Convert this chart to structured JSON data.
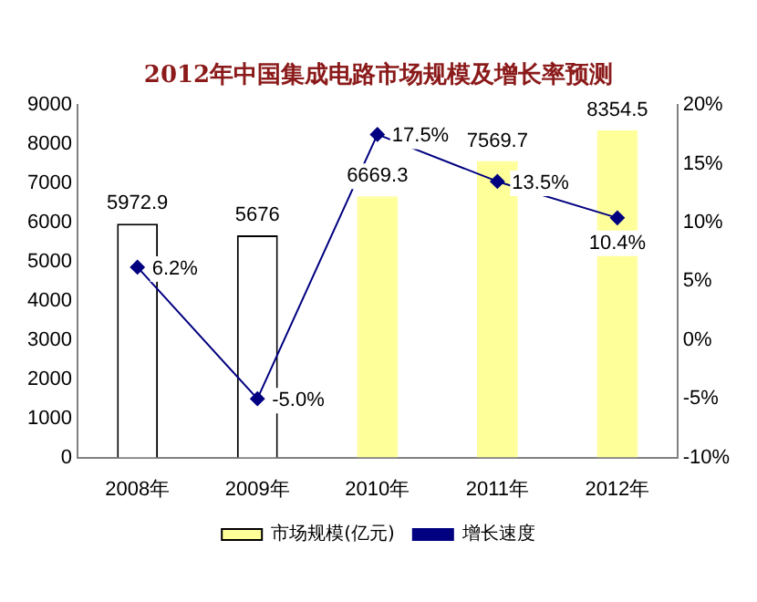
{
  "chart_data": {
    "type": "bar",
    "title": "2012年中国集成电路市场规模及增长率预测",
    "categories": [
      "2008年",
      "2009年",
      "2010年",
      "2011年",
      "2012年"
    ],
    "series": [
      {
        "name": "市场规模(亿元)",
        "colors": [
          "#ffffff",
          "#ffffff",
          "#ffff99",
          "#ffff99",
          "#ffff99"
        ],
        "values": [
          5972.9,
          5676,
          6669.3,
          7569.7,
          8354.5
        ],
        "value_labels": [
          "5972.9",
          "5676",
          "6669.3",
          "7569.7",
          "8354.5"
        ]
      },
      {
        "name": "增长速度",
        "type": "line",
        "axis": "y2",
        "color": "#000080",
        "marker": "diamond",
        "values": [
          6.2,
          -5.0,
          17.5,
          13.5,
          10.4
        ],
        "value_labels": [
          "6.2%",
          "-5.0%",
          "17.5%",
          "13.5%",
          "10.4%"
        ]
      }
    ],
    "ylim": [
      0,
      9000
    ],
    "yticks": [
      0,
      1000,
      2000,
      3000,
      4000,
      5000,
      6000,
      7000,
      8000,
      9000
    ],
    "y2lim": [
      -10,
      20
    ],
    "y2ticks": [
      {
        "value": -10,
        "label": "-10%"
      },
      {
        "value": -5,
        "label": "-5%"
      },
      {
        "value": 0,
        "label": "0%"
      },
      {
        "value": 5,
        "label": "5%"
      },
      {
        "value": 10,
        "label": "10%"
      },
      {
        "value": 15,
        "label": "15%"
      },
      {
        "value": 20,
        "label": "20%"
      }
    ],
    "grid": false,
    "legend": "bottom"
  }
}
